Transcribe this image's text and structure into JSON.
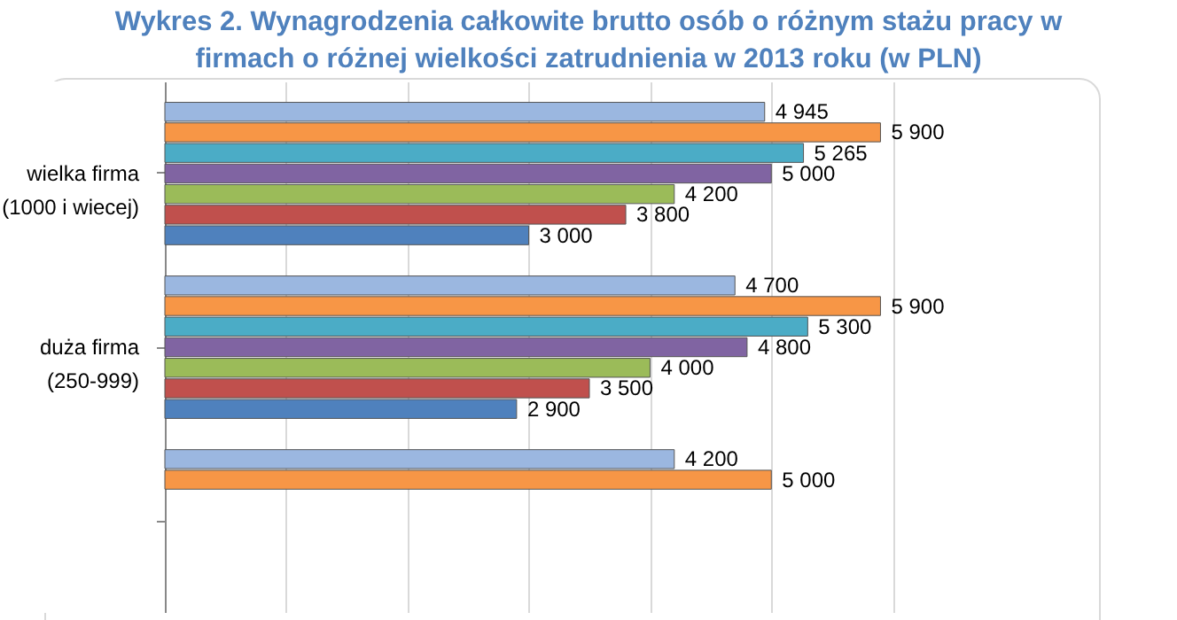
{
  "chart_data": {
    "type": "bar",
    "orientation": "horizontal",
    "title": "Wykres 2. Wynagrodzenia całkowite brutto osób o różnym stażu pracy w firmach o różnej wielkości zatrudnienia w 2013 roku (w PLN)",
    "categories": [
      "wielka firma (1000 i wiecej)",
      "duża firma (250-999)",
      null
    ],
    "series": [
      {
        "color": "#9bb7e0",
        "values": [
          4945,
          4700,
          4200
        ]
      },
      {
        "color": "#f79646",
        "values": [
          5900,
          5900,
          5000
        ]
      },
      {
        "color": "#4bacc6",
        "values": [
          5265,
          5300,
          null
        ]
      },
      {
        "color": "#8064a2",
        "values": [
          5000,
          4800,
          null
        ]
      },
      {
        "color": "#9bbb59",
        "values": [
          4200,
          4000,
          null
        ]
      },
      {
        "color": "#c0504d",
        "values": [
          3800,
          3500,
          null
        ]
      },
      {
        "color": "#4f81bd",
        "values": [
          3000,
          2900,
          null
        ]
      }
    ],
    "xlim": [
      0,
      7000
    ],
    "xticks": [
      {
        "value": 0,
        "label": null
      },
      {
        "value": 1000,
        "label": null
      },
      {
        "value": 2000,
        "label": null
      },
      {
        "value": 3000,
        "label": null
      },
      {
        "value": 4000,
        "label": null
      },
      {
        "value": 5000,
        "label": null
      },
      {
        "value": 6000,
        "label": null
      },
      {
        "value": 7000,
        "label": null
      }
    ],
    "tick_labels": false,
    "grid": "x",
    "data_labels": true,
    "legend": false
  }
}
